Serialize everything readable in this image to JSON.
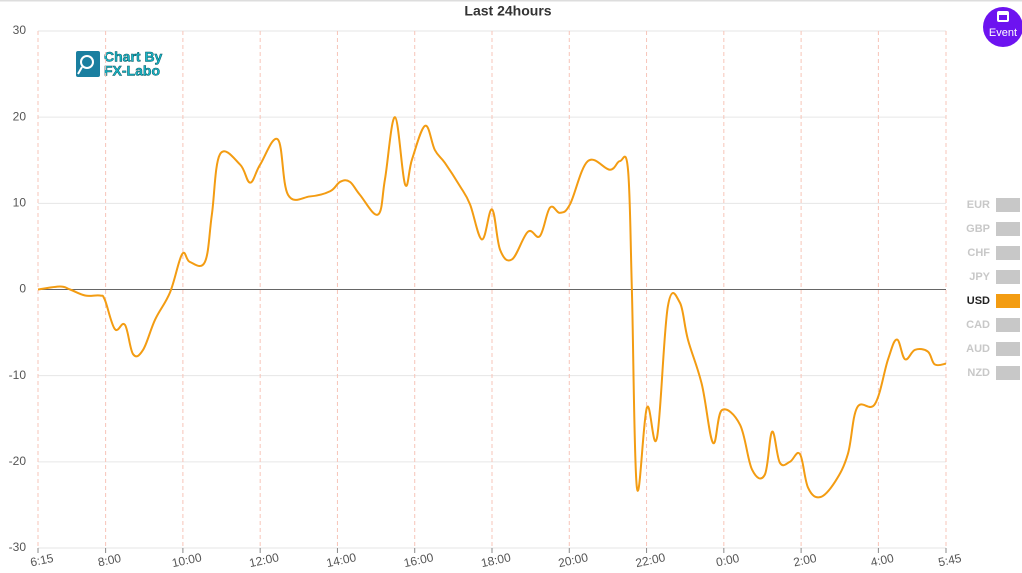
{
  "chart_data": {
    "type": "line",
    "title": "Last 24hours",
    "x": [
      6.25,
      6.82,
      7.08,
      7.47,
      7.85,
      7.98,
      8.24,
      8.5,
      8.71,
      8.97,
      9.28,
      9.67,
      9.98,
      10.18,
      10.57,
      10.75,
      10.96,
      11.48,
      11.74,
      12.0,
      12.46,
      12.72,
      13.29,
      13.81,
      14.07,
      14.32,
      14.58,
      15.05,
      15.23,
      15.49,
      15.75,
      15.93,
      16.27,
      16.52,
      16.78,
      17.17,
      17.43,
      17.74,
      18.0,
      18.21,
      18.52,
      18.93,
      19.24,
      19.5,
      19.76,
      20.02,
      20.48,
      21.05,
      21.31,
      21.52,
      21.62,
      21.75,
      22.01,
      22.27,
      22.55,
      22.86,
      23.07,
      23.43,
      23.72,
      23.95,
      24.42,
      24.73,
      25.06,
      25.25,
      25.45,
      25.71,
      25.97,
      26.18,
      26.49,
      26.88,
      27.21,
      27.45,
      27.91,
      28.25,
      28.48,
      28.69,
      28.95,
      29.28,
      29.46,
      29.75
    ],
    "series": [
      {
        "name": "USD",
        "color": "#f39c12",
        "values": [
          0,
          0.35,
          0,
          -0.7,
          -0.7,
          -1.2,
          -4.6,
          -4.1,
          -7.5,
          -7,
          -3.5,
          -0.3,
          4.1,
          3.2,
          3.2,
          8.7,
          15.7,
          14.5,
          12.4,
          14.5,
          17.4,
          11,
          10.8,
          11.4,
          12.5,
          12.5,
          11,
          8.7,
          12.8,
          20,
          12.2,
          15.1,
          19,
          16.2,
          14.7,
          12,
          9.9,
          5.8,
          9.3,
          4.6,
          3.5,
          6.7,
          6.2,
          9.5,
          8.9,
          9.9,
          14.9,
          13.9,
          14.9,
          13.9,
          0,
          -23,
          -13.7,
          -17.2,
          -2,
          -1.5,
          -5.8,
          -11,
          -17.8,
          -14,
          -15.7,
          -20.9,
          -21.5,
          -16.5,
          -20.1,
          -20,
          -19.1,
          -23,
          -24.1,
          -22.3,
          -19.1,
          -13.7,
          -13.3,
          -8.1,
          -5.8,
          -8.1,
          -7,
          -7.2,
          -8.7,
          -8.6
        ]
      }
    ],
    "xlim": [
      6.25,
      29.75
    ],
    "xticks": [
      {
        "value": 6.25,
        "label": "6:15"
      },
      {
        "value": 8,
        "label": "8:00"
      },
      {
        "value": 10,
        "label": "10:00"
      },
      {
        "value": 12,
        "label": "12:00"
      },
      {
        "value": 14,
        "label": "14:00"
      },
      {
        "value": 16,
        "label": "16:00"
      },
      {
        "value": 18,
        "label": "18:00"
      },
      {
        "value": 20,
        "label": "20:00"
      },
      {
        "value": 22,
        "label": "22:00"
      },
      {
        "value": 24,
        "label": "0:00"
      },
      {
        "value": 26,
        "label": "2:00"
      },
      {
        "value": 28,
        "label": "4:00"
      },
      {
        "value": 29.75,
        "label": "5:45"
      }
    ],
    "ylim": [
      -30,
      30
    ],
    "yticks": [
      -30,
      -20,
      -10,
      0,
      10,
      20,
      30
    ],
    "grid": true,
    "legend": {
      "position": "right",
      "entries": [
        {
          "name": "EUR",
          "color": "#c8c8c8"
        },
        {
          "name": "GBP",
          "color": "#c8c8c8"
        },
        {
          "name": "CHF",
          "color": "#c8c8c8"
        },
        {
          "name": "JPY",
          "color": "#c8c8c8"
        },
        {
          "series": 0
        },
        {
          "name": "CAD",
          "color": "#c8c8c8"
        },
        {
          "name": "AUD",
          "color": "#c8c8c8"
        },
        {
          "name": "NZD",
          "color": "#c8c8c8"
        }
      ]
    }
  },
  "watermark": [
    "Chart By",
    "FX-Labo"
  ],
  "event_button": "Event"
}
